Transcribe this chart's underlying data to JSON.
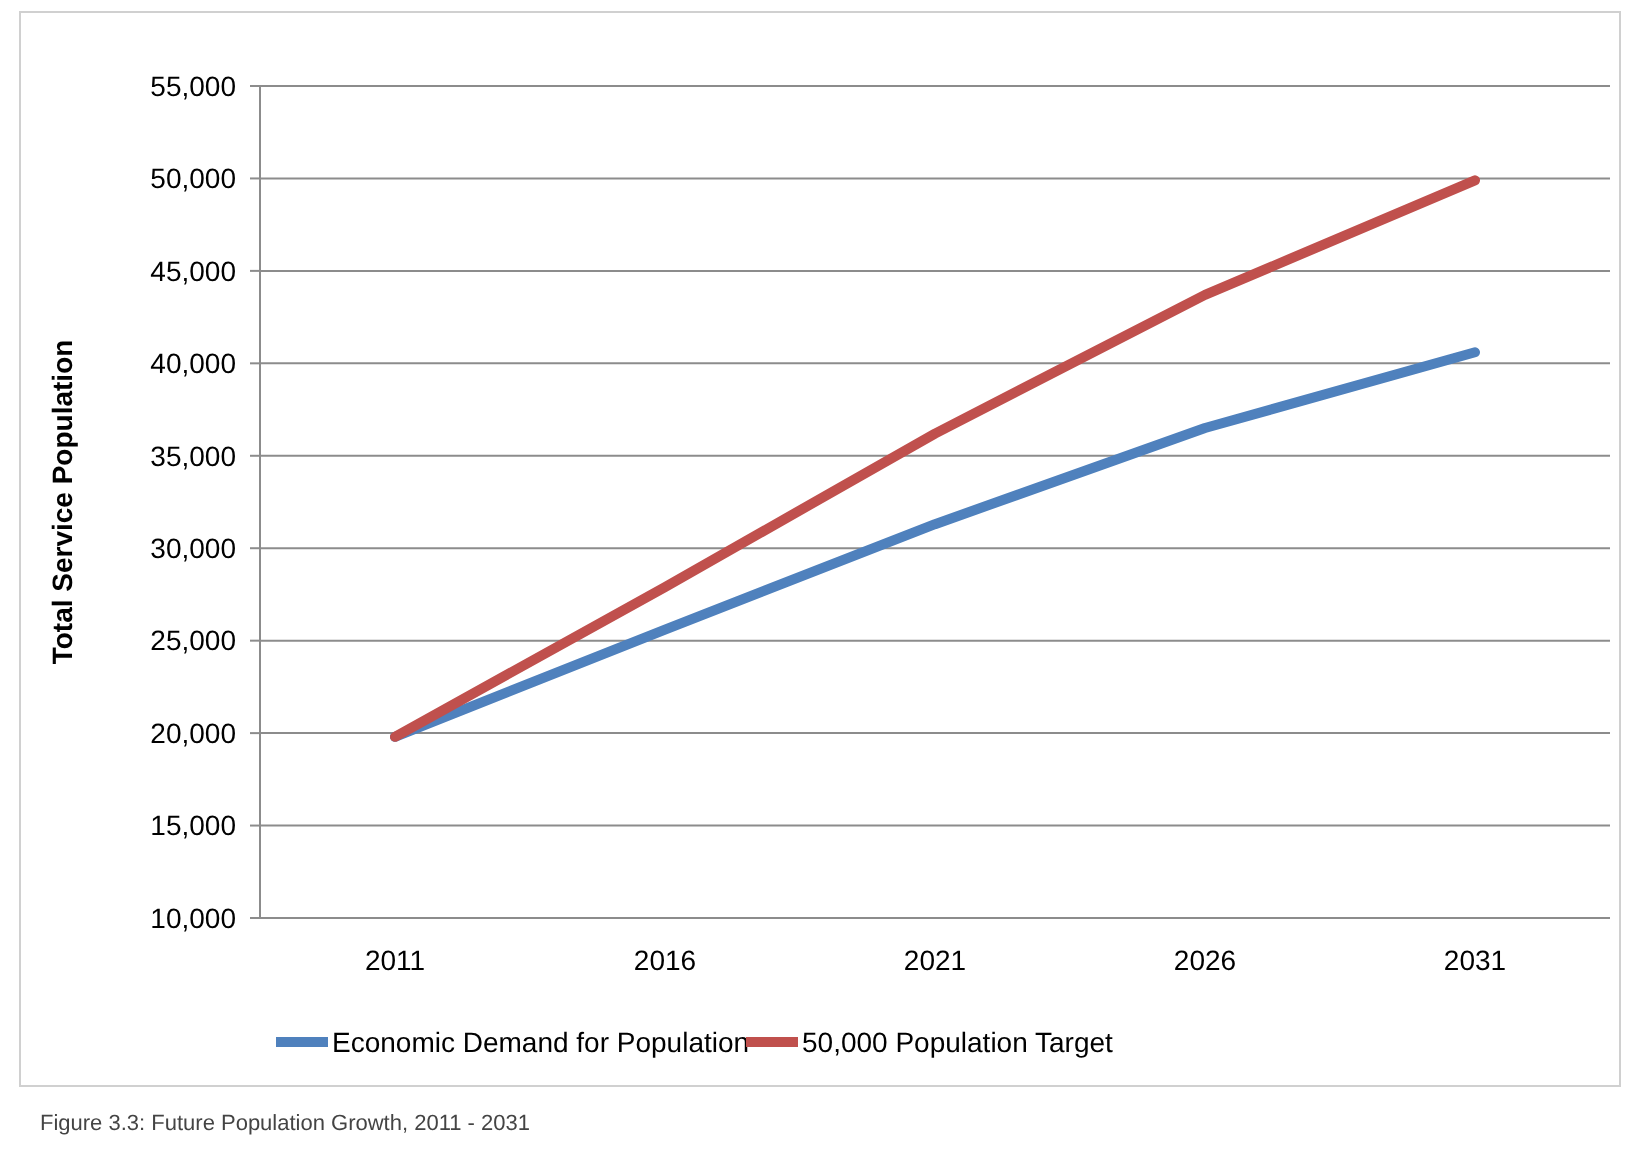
{
  "chart_data": {
    "type": "line",
    "ylabel": "Total Service Population",
    "categories": [
      "2011",
      "2016",
      "2021",
      "2026",
      "2031"
    ],
    "series": [
      {
        "name": "Economic Demand for Population",
        "color": "#4f81bd",
        "values": [
          19800,
          25600,
          31300,
          36500,
          40600
        ]
      },
      {
        "name": "50,000 Population Target",
        "color": "#c0504d",
        "values": [
          19800,
          27900,
          36200,
          43700,
          49900
        ]
      }
    ],
    "ylim": [
      10000,
      55000
    ],
    "yticks": [
      {
        "value": 10000,
        "label": "10,000"
      },
      {
        "value": 15000,
        "label": "15,000"
      },
      {
        "value": 20000,
        "label": "20,000"
      },
      {
        "value": 25000,
        "label": "25,000"
      },
      {
        "value": 30000,
        "label": "30,000"
      },
      {
        "value": 35000,
        "label": "35,000"
      },
      {
        "value": 40000,
        "label": "40,000"
      },
      {
        "value": 45000,
        "label": "45,000"
      },
      {
        "value": 50000,
        "label": "50,000"
      },
      {
        "value": 55000,
        "label": "55,000"
      }
    ],
    "grid": "y",
    "legend": "bottom",
    "marker": "none",
    "line_style": "solid",
    "annotations": [
      "Figure 3.3:   Future Population Growth, 2011 - 2031"
    ]
  }
}
